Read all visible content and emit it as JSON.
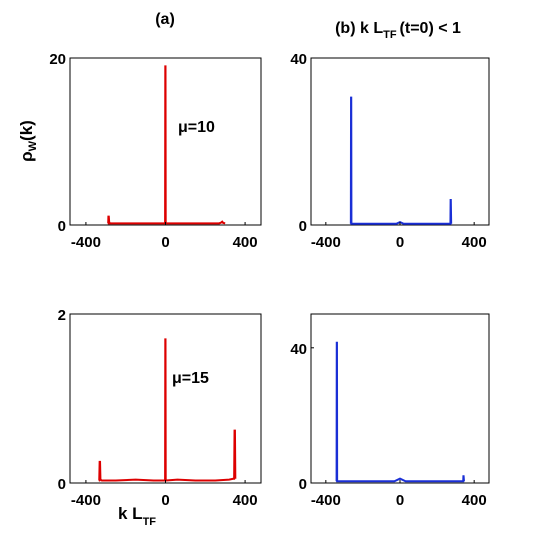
{
  "chart_data": [
    {
      "type": "line",
      "panel": "top-left",
      "title": "(a)",
      "ylabel_parts": {
        "main": "ρ",
        "sub": "W",
        "tail": "(k)"
      },
      "annotation": "μ=10",
      "xlim": [
        -480,
        480
      ],
      "ylim": [
        0,
        20
      ],
      "xticks": [
        -400,
        0,
        400
      ],
      "yticks": [
        0,
        20
      ],
      "xtick_labels": [
        "-400",
        "0",
        "400"
      ],
      "ytick_labels": [
        "0",
        "20"
      ],
      "color": "#dd0000",
      "series": [
        {
          "x": [
            -290,
            -288,
            -287,
            -285,
            -283,
            -282,
            -280,
            -278,
            -30,
            -2,
            -1,
            0,
            1,
            2,
            30,
            270,
            280,
            285,
            290,
            300
          ],
          "y": [
            0.2,
            0.2,
            1.0,
            1.0,
            0.3,
            0.3,
            0.2,
            0.2,
            0.2,
            0.2,
            19,
            19,
            0.2,
            0.2,
            0.2,
            0.2,
            0.3,
            0.4,
            0.25,
            0.2
          ]
        }
      ]
    },
    {
      "type": "line",
      "panel": "top-right",
      "title_parts": {
        "pre": "(b) k L",
        "sub": "TF",
        "post": "(t=0) < 1"
      },
      "xlim": [
        -480,
        480
      ],
      "ylim": [
        0,
        40
      ],
      "xticks": [
        -400,
        0,
        400
      ],
      "yticks": [
        0,
        40
      ],
      "xtick_labels": [
        "-400",
        "0",
        "400"
      ],
      "ytick_labels": [
        "0",
        "40"
      ],
      "color": "#1a2fd6",
      "series": [
        {
          "x": [
            -265,
            -264,
            -263,
            -262,
            -260,
            -200,
            -20,
            0,
            20,
            200,
            270,
            272,
            273,
            274,
            276
          ],
          "y": [
            0.3,
            30.5,
            30.5,
            0.3,
            0.3,
            0.3,
            0.3,
            0.7,
            0.3,
            0.3,
            0.3,
            0.3,
            6.0,
            6.0,
            0.3
          ]
        }
      ]
    },
    {
      "type": "line",
      "panel": "bottom-left",
      "annotation": "μ=15",
      "xlabel_parts": {
        "main": "k L",
        "sub": "TF"
      },
      "xlim": [
        -480,
        480
      ],
      "ylim": [
        0,
        2
      ],
      "xticks": [
        -400,
        0,
        400
      ],
      "yticks": [
        0,
        2
      ],
      "xtick_labels": [
        "-400",
        "0",
        "400"
      ],
      "ytick_labels": [
        "0",
        "2"
      ],
      "color": "#dd0000",
      "series": [
        {
          "x": [
            -335,
            -333,
            -331,
            -329,
            -327,
            -320,
            -250,
            -150,
            -60,
            -2,
            -1,
            0,
            1,
            2,
            60,
            150,
            250,
            320,
            340,
            345,
            347,
            349,
            351
          ],
          "y": [
            0.03,
            0.03,
            0.25,
            0.25,
            0.04,
            0.03,
            0.03,
            0.04,
            0.03,
            0.03,
            1.7,
            1.7,
            0.03,
            0.03,
            0.04,
            0.03,
            0.03,
            0.04,
            0.05,
            0.05,
            0.62,
            0.62,
            0.05
          ]
        }
      ]
    },
    {
      "type": "line",
      "panel": "bottom-right",
      "xlim": [
        -480,
        480
      ],
      "ylim": [
        0,
        50
      ],
      "xticks": [
        -400,
        0,
        400
      ],
      "yticks": [
        0,
        40
      ],
      "xtick_labels": [
        "-400",
        "0",
        "400"
      ],
      "ytick_labels": [
        "0",
        "40"
      ],
      "color": "#1a2fd6",
      "series": [
        {
          "x": [
            -342,
            -341,
            -340,
            -339,
            -337,
            -250,
            -30,
            0,
            30,
            250,
            340,
            341,
            342,
            343,
            345
          ],
          "y": [
            0.5,
            41.5,
            41.5,
            0.5,
            0.5,
            0.5,
            0.5,
            1.3,
            0.5,
            0.5,
            0.5,
            0.5,
            2.0,
            2.0,
            0.5
          ]
        }
      ]
    }
  ]
}
